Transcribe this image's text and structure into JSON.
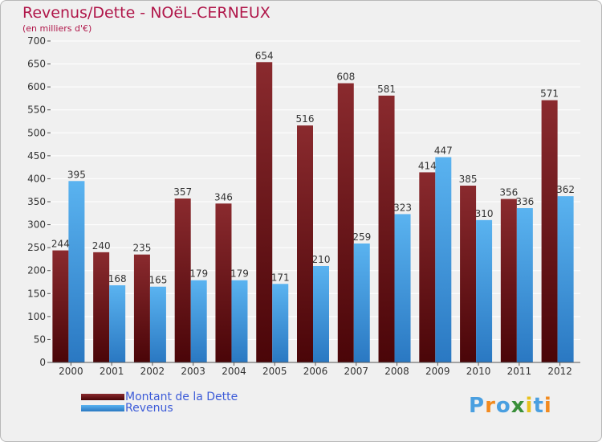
{
  "title": "Revenus/Dette - NOëL-CERNEUX",
  "subtitle": "(en milliers d'€)",
  "logo_text": "Proxiti",
  "colors": {
    "dette": "#7a1a1f",
    "dette_dark": "#4a0508",
    "revenus": "#4aa3e8",
    "revenus_dark": "#2a78c2",
    "title": "#b0174a",
    "legend_text": "#3c5bd8",
    "grid": "#ffffff",
    "background": "#f0f0f0"
  },
  "chart_data": {
    "type": "bar",
    "categories": [
      "2000",
      "2001",
      "2002",
      "2003",
      "2004",
      "2005",
      "2006",
      "2007",
      "2008",
      "2009",
      "2010",
      "2011",
      "2012"
    ],
    "series": [
      {
        "name": "Montant de la Dette",
        "values": [
          244,
          240,
          235,
          357,
          346,
          654,
          516,
          608,
          581,
          414,
          385,
          356,
          571
        ]
      },
      {
        "name": "Revenus",
        "values": [
          395,
          168,
          165,
          179,
          179,
          171,
          210,
          259,
          323,
          447,
          310,
          336,
          362
        ]
      }
    ],
    "ylim": [
      0,
      700
    ],
    "yticks": [
      0,
      50,
      100,
      150,
      200,
      250,
      300,
      350,
      400,
      450,
      500,
      550,
      600,
      650,
      700
    ],
    "grid": true,
    "legend_position": "bottom-left"
  }
}
